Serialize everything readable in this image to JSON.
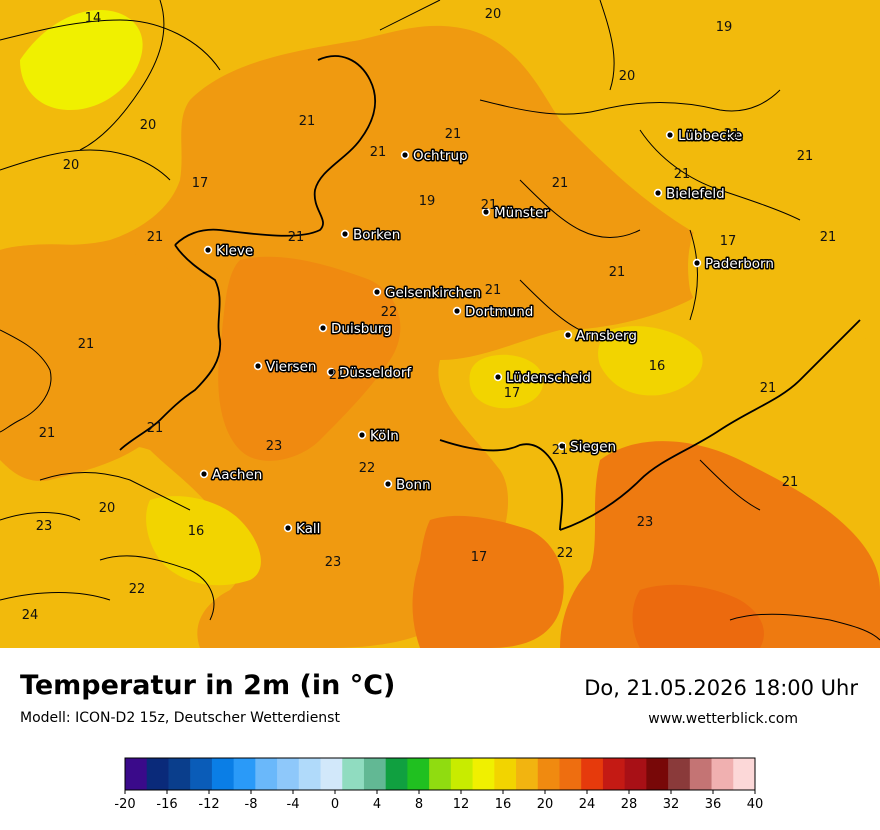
{
  "map": {
    "cities": [
      {
        "name": "Ochtrup"
      },
      {
        "name": "Lübbecke"
      },
      {
        "name": "Bielefeld"
      },
      {
        "name": "Münster"
      },
      {
        "name": "Borken"
      },
      {
        "name": "Kleve"
      },
      {
        "name": "Paderborn"
      },
      {
        "name": "Gelsenkirchen"
      },
      {
        "name": "Dortmund"
      },
      {
        "name": "Duisburg"
      },
      {
        "name": "Arnsberg"
      },
      {
        "name": "Viersen"
      },
      {
        "name": "Düsseldorf"
      },
      {
        "name": "Lüdenscheid"
      },
      {
        "name": "Köln"
      },
      {
        "name": "Siegen"
      },
      {
        "name": "Aachen"
      },
      {
        "name": "Bonn"
      },
      {
        "name": "Kall"
      }
    ],
    "isotherm_labels": [
      "14",
      "20",
      "19",
      "20",
      "21",
      "20",
      "20",
      "21",
      "21",
      "21",
      "21",
      "17",
      "21",
      "21",
      "19",
      "21",
      "21",
      "21",
      "17",
      "21",
      "21",
      "21",
      "22",
      "21",
      "16",
      "21",
      "22",
      "17",
      "21",
      "23",
      "22",
      "21",
      "16",
      "23",
      "21",
      "21",
      "20",
      "23",
      "23",
      "17",
      "22",
      "22",
      "24"
    ],
    "colors": {
      "t14": "#f0f000",
      "t16": "#f2d400",
      "t19": "#f2ba0c",
      "t21": "#f09a10",
      "t22": "#f08a10",
      "t23": "#ee7a10",
      "t24": "#ec6a0e",
      "border": "#000000"
    }
  },
  "footer": {
    "title": "Temperatur in 2m (in °C)",
    "model": "Modell: ICON-D2 15z, Deutscher Wetterdienst",
    "datetime": "Do, 21.05.2026 18:00 Uhr",
    "website": "www.wetterblick.com"
  },
  "legend": {
    "ticks": [
      "-20",
      "-16",
      "-12",
      "-8",
      "-4",
      "0",
      "4",
      "8",
      "12",
      "16",
      "20",
      "24",
      "28",
      "32",
      "36",
      "40"
    ],
    "colors": [
      "#3a0a8a",
      "#0a2a7a",
      "#0a3e8c",
      "#0a5cb8",
      "#0a7ee6",
      "#2a9af8",
      "#6ab8fa",
      "#8ec8fa",
      "#b0dafa",
      "#d2e8fa",
      "#90dcc0",
      "#62b894",
      "#10a040",
      "#20c020",
      "#90dc10",
      "#c8ec00",
      "#f0f000",
      "#f2d400",
      "#f2b410",
      "#f08a10",
      "#ee6e10",
      "#e63a0c",
      "#c41a14",
      "#a81016",
      "#780808",
      "#8a3a3a",
      "#c47474",
      "#f0b0b0",
      "#fcd8d8"
    ]
  }
}
